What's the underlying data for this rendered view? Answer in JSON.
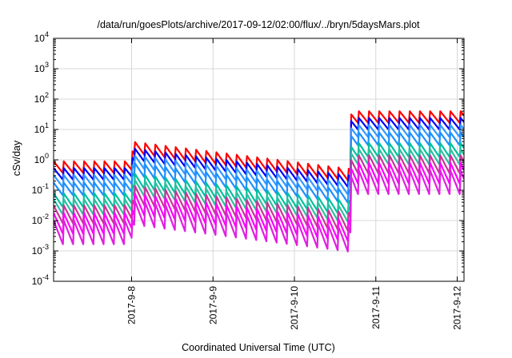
{
  "chart_data": {
    "type": "line",
    "title": "/data/run/goesPlots/archive/2017-09-12/02:00/flux/../bryn/5daysMars.plot",
    "xlabel": "Coordinated Universal Time (UTC)",
    "ylabel": "cSv/day",
    "log_y": true,
    "ylim_exponents": [
      -4,
      4
    ],
    "ytick_exponents": [
      -4,
      -3,
      -2,
      -1,
      0,
      1,
      2,
      3,
      4
    ],
    "ytick_base": "10",
    "xlim": [
      "2017-09-07 01:00",
      "2017-09-12 02:00"
    ],
    "xticks": [
      {
        "label": "2017-9-8",
        "date": "2017-09-08"
      },
      {
        "label": "2017-9-9",
        "date": "2017-09-09"
      },
      {
        "label": "2017-9-10",
        "date": "2017-09-10"
      },
      {
        "label": "2017-9-11",
        "date": "2017-09-11"
      },
      {
        "label": "2017-9-12",
        "date": "2017-09-12"
      }
    ],
    "grid": true,
    "legend": "none",
    "sawtooth_period_hours": 3,
    "series_model": {
      "time_segments": [
        {
          "start": "2017-09-07 01:00",
          "end": "2017-09-08 00:00",
          "peak_log10_ref": -0.05
        },
        {
          "start": "2017-09-08 00:00",
          "end": "2017-09-10 16:30",
          "peak_log10_ref_start": 0.6,
          "peak_log10_ref_end": -0.3
        },
        {
          "start": "2017-09-10 16:30",
          "end": "2017-09-12 02:00",
          "peak_log10_ref": 1.6
        }
      ]
    },
    "series": [
      {
        "color": "#ff0000",
        "level_offset": 0.0,
        "amplitude": 0.42
      },
      {
        "color": "#0000ff",
        "level_offset": -0.22,
        "amplitude": 0.42
      },
      {
        "color": "#3399ff",
        "level_offset": -0.45,
        "amplitude": 0.44
      },
      {
        "color": "#1e90ff",
        "level_offset": -0.7,
        "amplitude": 0.46
      },
      {
        "color": "#00c0a0",
        "level_offset": -1.05,
        "amplitude": 0.5
      },
      {
        "color": "#2fbf9f",
        "level_offset": -1.25,
        "amplitude": 0.55
      },
      {
        "color": "#cc3399",
        "level_offset": -1.45,
        "amplitude": 0.65
      },
      {
        "color": "#ff00ff",
        "level_offset": -1.7,
        "amplitude": 0.75
      },
      {
        "color": "#e020e0",
        "level_offset": -1.95,
        "amplitude": 0.85
      }
    ]
  }
}
